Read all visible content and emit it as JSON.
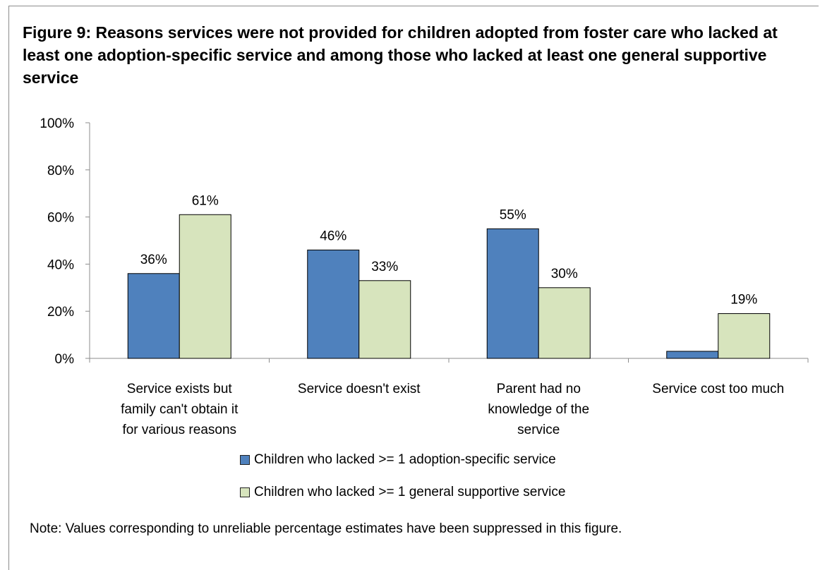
{
  "chart_data": {
    "type": "bar",
    "title": "Figure 9: Reasons services were not provided for children adopted from foster care who lacked at least one adoption-specific service and among those who lacked at least one general supportive service",
    "categories": [
      [
        "Service exists but",
        "family can't obtain it",
        "for various reasons"
      ],
      [
        "Service doesn't exist"
      ],
      [
        "Parent had no",
        "knowledge of the",
        "service"
      ],
      [
        "Service cost too much"
      ]
    ],
    "series": [
      {
        "name": "Children who lacked >= 1 adoption-specific service",
        "color": "#4f81bd",
        "values": [
          36,
          46,
          55,
          3
        ],
        "labels": [
          "36%",
          "46%",
          "55%",
          ""
        ]
      },
      {
        "name": "Children who lacked >= 1 general supportive service",
        "color": "#d7e4bd",
        "values": [
          61,
          33,
          30,
          19
        ],
        "labels": [
          "61%",
          "33%",
          "30%",
          "19%"
        ]
      }
    ],
    "ylim": [
      0,
      100
    ],
    "yticks": [
      "0%",
      "20%",
      "40%",
      "60%",
      "80%",
      "100%"
    ],
    "grid": false,
    "legend_position": "bottom"
  },
  "note": "Note: Values corresponding to unreliable percentage estimates have been suppressed in this figure."
}
